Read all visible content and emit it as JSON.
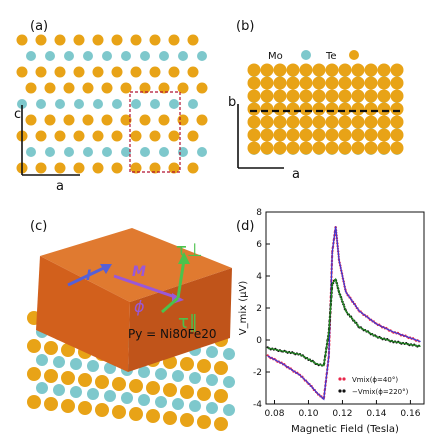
{
  "panels": {
    "a": {
      "label": "(a)",
      "axis_c": "c",
      "axis_a": "a"
    },
    "b": {
      "label": "(b)",
      "legend_mo": "Mo",
      "legend_te": "Te",
      "axis_b": "b",
      "axis_a": "a"
    },
    "c": {
      "label": "(c)",
      "I": "I",
      "M": "M",
      "phi": "ϕ",
      "tau_perp": "τ⊥",
      "tau_par": "τ∥",
      "py_label": "Py = Ni80Fe20"
    },
    "d": {
      "label": "(d)"
    }
  },
  "colors": {
    "mo": "#7ec8cc",
    "te": "#e8a317",
    "py": "#d2601c",
    "red": "#e8264a",
    "blue": "#3b3bd6",
    "green": "#1f8a1f",
    "black": "#111111"
  },
  "chart_data": {
    "type": "line",
    "title": "",
    "xlabel": "Magnetic Field (Tesla)",
    "ylabel": "V_mix (μV)",
    "xlim": [
      0.075,
      0.168
    ],
    "ylim": [
      -4,
      8
    ],
    "xticks": [
      0.08,
      0.1,
      0.12,
      0.14,
      0.16
    ],
    "yticks": [
      -4,
      -2,
      0,
      2,
      4,
      6,
      8
    ],
    "legend_position": "bottom-right",
    "series": [
      {
        "name": "Vmix(ϕ=40°)",
        "marker": "dots",
        "color": "#e8264a",
        "fit_color": "#3b3bd6",
        "x": [
          0.076,
          0.085,
          0.095,
          0.1,
          0.105,
          0.109,
          0.112,
          0.114,
          0.116,
          0.118,
          0.122,
          0.13,
          0.14,
          0.15,
          0.166
        ],
        "y": [
          -1.0,
          -1.5,
          -2.2,
          -2.7,
          -3.3,
          -3.7,
          -1.0,
          5.5,
          7.1,
          5.0,
          3.0,
          1.8,
          1.0,
          0.5,
          -0.1
        ]
      },
      {
        "name": "−Vmix(ϕ=220°)",
        "marker": "dots",
        "color": "#111111",
        "fit_color": "#1f8a1f",
        "x": [
          0.076,
          0.085,
          0.095,
          0.1,
          0.105,
          0.109,
          0.112,
          0.114,
          0.116,
          0.118,
          0.122,
          0.13,
          0.14,
          0.15,
          0.166
        ],
        "y": [
          -0.5,
          -0.7,
          -0.9,
          -1.2,
          -1.5,
          -1.6,
          0.5,
          3.5,
          3.8,
          3.0,
          1.8,
          0.8,
          0.2,
          -0.1,
          -0.4
        ]
      }
    ]
  }
}
